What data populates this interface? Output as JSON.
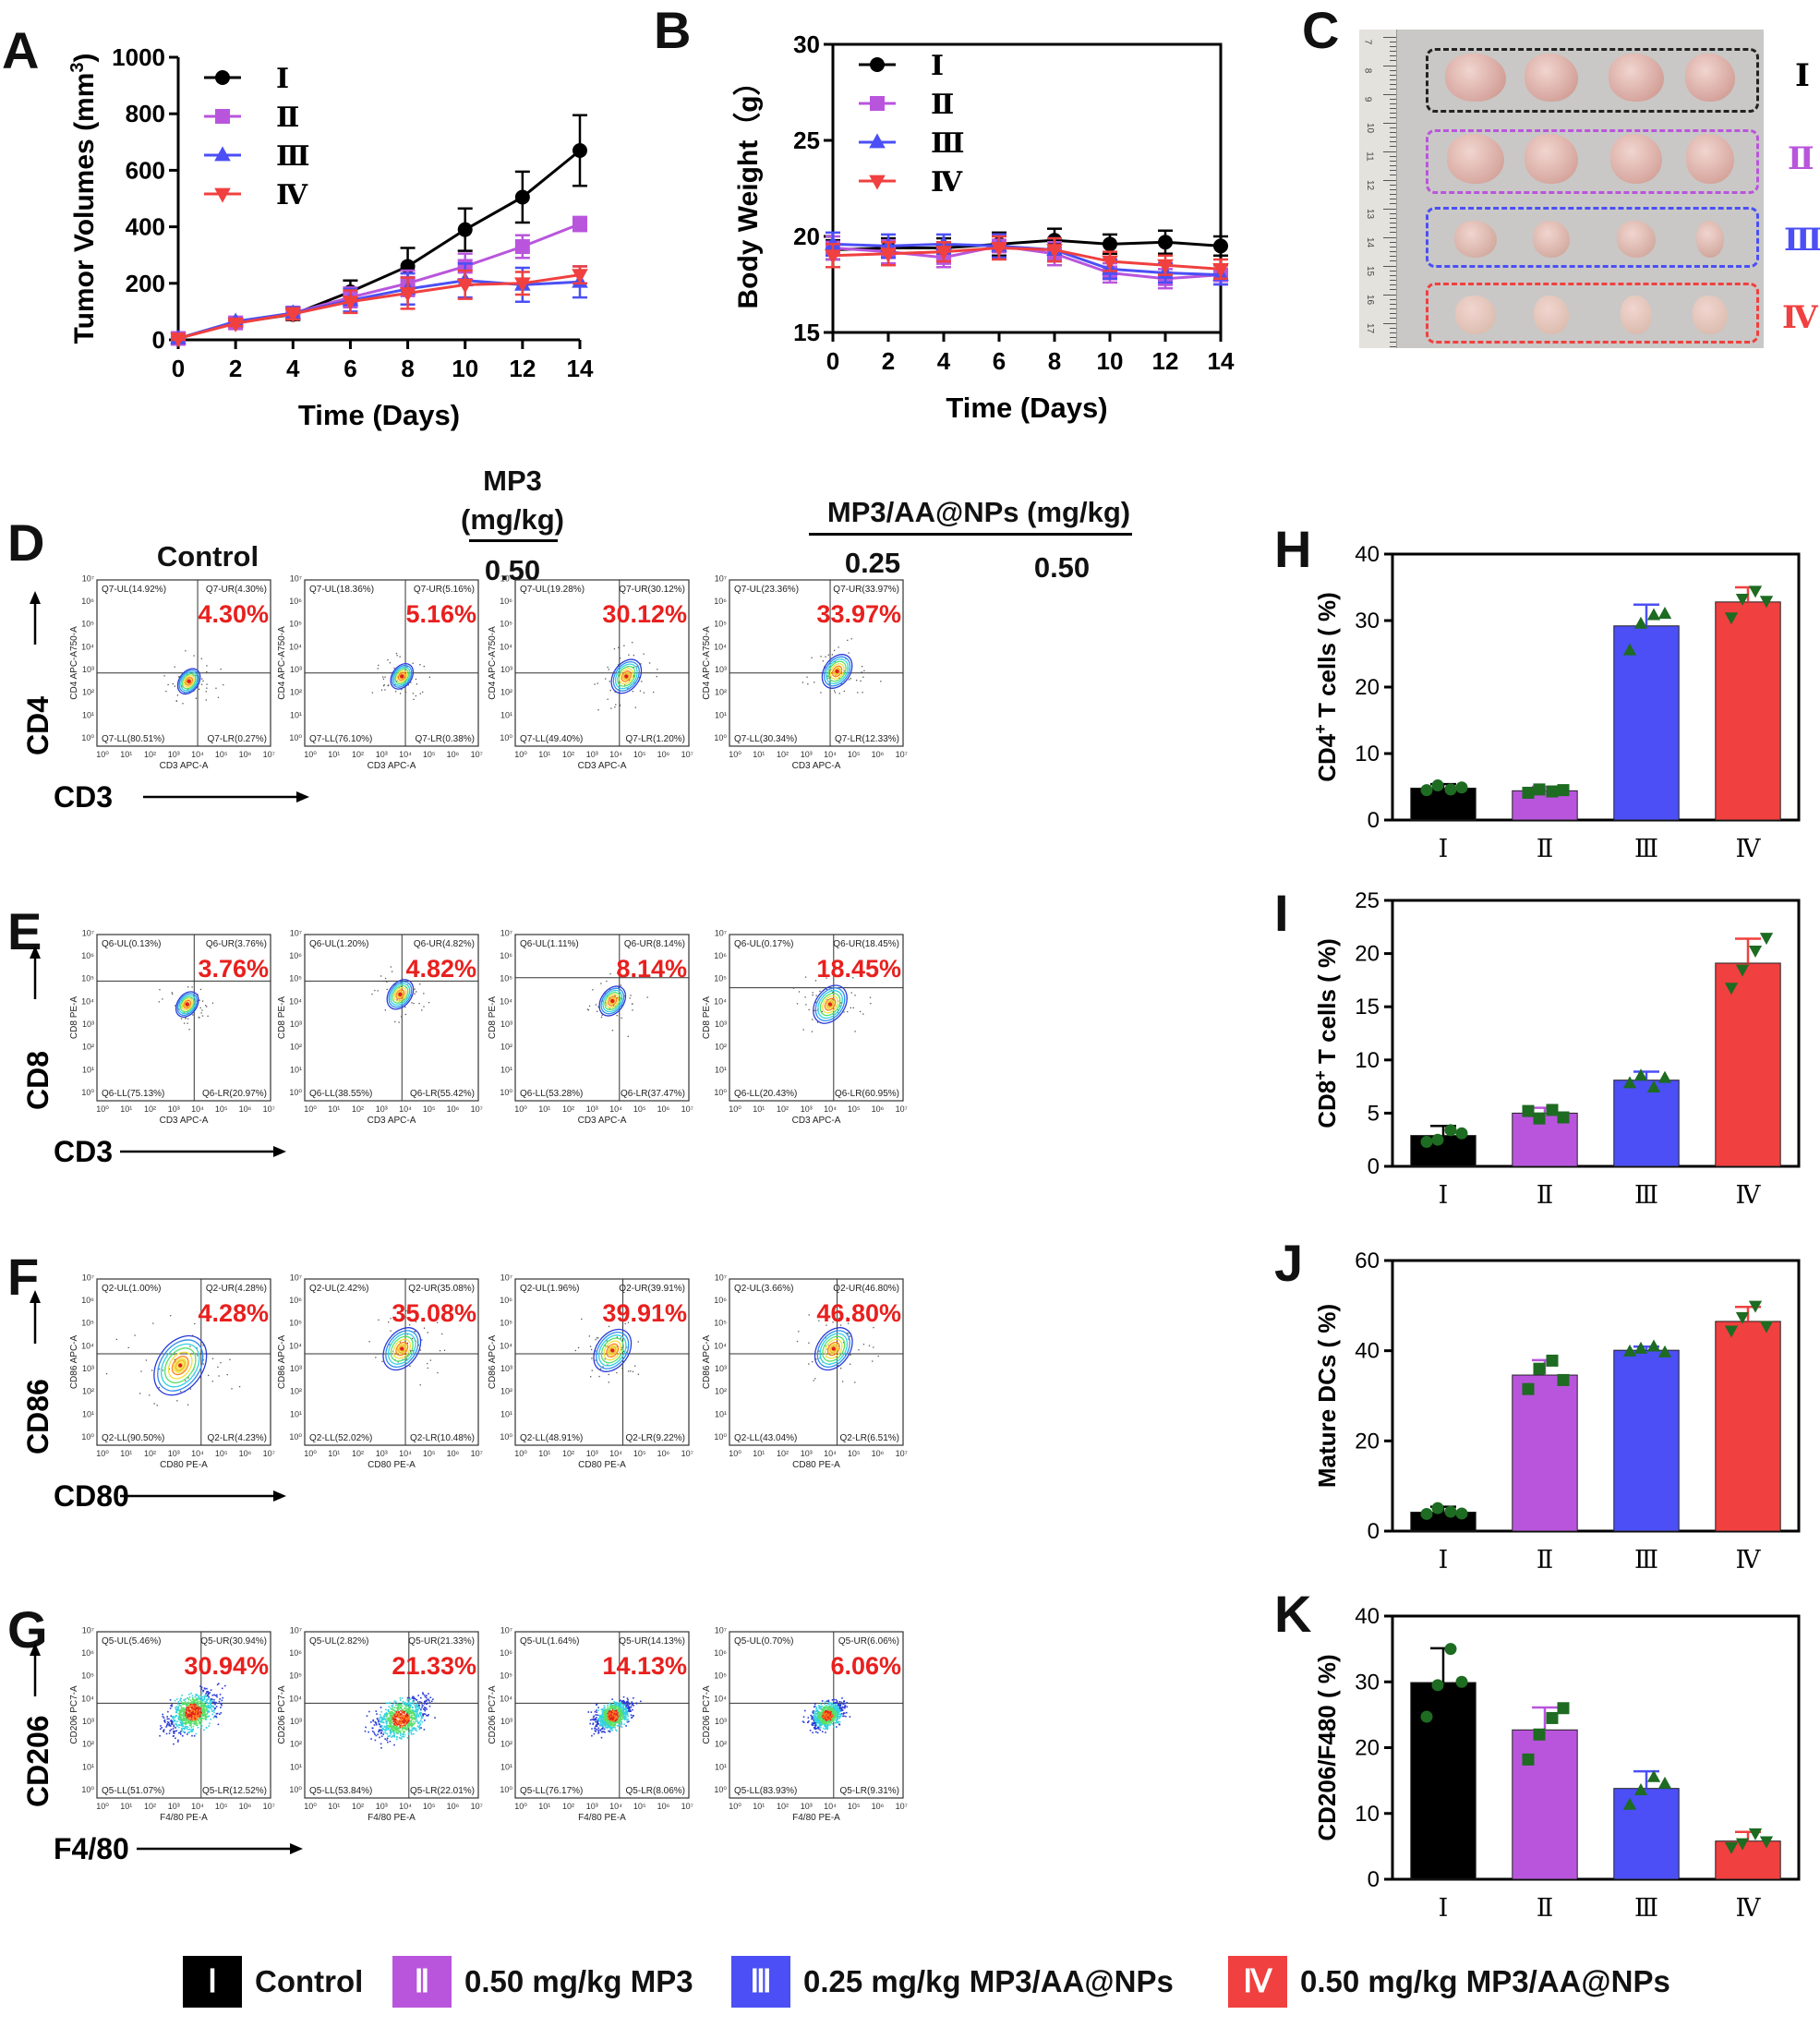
{
  "panel_labels": {
    "A": "A",
    "B": "B",
    "C": "C",
    "D": "D",
    "E": "E",
    "F": "F",
    "G": "G",
    "H": "H",
    "I": "I",
    "J": "J",
    "K": "K"
  },
  "group_names": [
    "Ⅰ",
    "Ⅱ",
    "Ⅲ",
    "Ⅳ"
  ],
  "group_colors": [
    "#000000",
    "#b955dc",
    "#4b4ff5",
    "#f0403f"
  ],
  "chart_data": [
    {
      "id": "A",
      "type": "line",
      "title": "",
      "xlabel": "Time (Days)",
      "ylabel": "Tumor Volumes (mm³)",
      "ylabel_main": "Tumor Volumes (mm",
      "ylabel_sup": "3",
      "ylabel_close": ")",
      "x": [
        0,
        2,
        4,
        6,
        8,
        10,
        12,
        14
      ],
      "xlim": [
        0,
        14
      ],
      "ylim": [
        0,
        1000
      ],
      "yticks": [
        0,
        200,
        400,
        600,
        800,
        1000
      ],
      "xticks": [
        0,
        2,
        4,
        6,
        8,
        10,
        12,
        14
      ],
      "series": [
        {
          "name": "Ⅰ",
          "color": "#000000",
          "marker": "circle",
          "values": [
            5,
            60,
            90,
            170,
            260,
            390,
            505,
            670
          ],
          "err": [
            5,
            10,
            20,
            40,
            65,
            75,
            90,
            125
          ]
        },
        {
          "name": "Ⅱ",
          "color": "#b955dc",
          "marker": "square",
          "values": [
            5,
            60,
            95,
            150,
            200,
            260,
            330,
            410
          ],
          "err": [
            5,
            10,
            20,
            35,
            45,
            45,
            40,
            25
          ]
        },
        {
          "name": "Ⅲ",
          "color": "#4b4ff5",
          "marker": "triangle",
          "values": [
            5,
            65,
            95,
            140,
            180,
            210,
            195,
            205
          ],
          "err": [
            5,
            10,
            20,
            40,
            55,
            60,
            60,
            55
          ]
        },
        {
          "name": "Ⅳ",
          "color": "#f0403f",
          "marker": "triangle-down",
          "values": [
            5,
            58,
            92,
            135,
            165,
            195,
            200,
            230
          ],
          "err": [
            5,
            10,
            20,
            40,
            55,
            50,
            40,
            30
          ]
        }
      ],
      "legend": "top-left"
    },
    {
      "id": "B",
      "type": "line",
      "title": "",
      "xlabel": "Time (Days)",
      "ylabel": "Body Weight（g）",
      "x": [
        0,
        2,
        4,
        6,
        8,
        10,
        12,
        14
      ],
      "xlim": [
        0,
        14
      ],
      "ylim": [
        15,
        30
      ],
      "yticks": [
        15,
        20,
        25,
        30
      ],
      "xticks": [
        0,
        2,
        4,
        6,
        8,
        10,
        12,
        14
      ],
      "series": [
        {
          "name": "Ⅰ",
          "color": "#000000",
          "marker": "circle",
          "values": [
            19.3,
            19.4,
            19.4,
            19.6,
            19.8,
            19.6,
            19.7,
            19.5
          ],
          "err": [
            0.5,
            0.5,
            0.5,
            0.6,
            0.6,
            0.5,
            0.6,
            0.5
          ]
        },
        {
          "name": "Ⅱ",
          "color": "#b955dc",
          "marker": "square",
          "values": [
            19.4,
            19.2,
            18.9,
            19.5,
            19.1,
            18.1,
            17.8,
            18.0
          ],
          "err": [
            0.6,
            0.6,
            0.5,
            0.6,
            0.6,
            0.5,
            0.5,
            0.5
          ]
        },
        {
          "name": "Ⅲ",
          "color": "#4b4ff5",
          "marker": "triangle",
          "values": [
            19.6,
            19.5,
            19.6,
            19.5,
            19.3,
            18.3,
            18.1,
            18.0
          ],
          "err": [
            0.6,
            0.6,
            0.5,
            0.6,
            0.6,
            0.5,
            0.5,
            0.5
          ]
        },
        {
          "name": "Ⅳ",
          "color": "#f0403f",
          "marker": "triangle-down",
          "values": [
            19.0,
            19.1,
            19.2,
            19.4,
            19.3,
            18.7,
            18.5,
            18.3
          ],
          "err": [
            0.6,
            0.6,
            0.5,
            0.6,
            0.6,
            0.5,
            0.5,
            0.5
          ]
        }
      ],
      "legend": "top-left"
    },
    {
      "id": "H",
      "type": "bar",
      "ylabel": "CD4⁺ T cells ( %)",
      "ylabel_pre": "CD4",
      "ylabel_sup": "+",
      "ylabel_post": " T cells ( %)",
      "categories": [
        "Ⅰ",
        "Ⅱ",
        "Ⅲ",
        "Ⅳ"
      ],
      "ylim": [
        0,
        40
      ],
      "yticks": [
        0,
        10,
        20,
        30,
        40
      ],
      "values": [
        4.8,
        4.4,
        29.2,
        32.8
      ],
      "err": [
        0.6,
        0.6,
        3.2,
        2.2
      ],
      "points": [
        [
          4.5,
          5.2,
          4.6,
          4.9
        ],
        [
          4.1,
          4.6,
          4.3,
          4.5
        ],
        [
          25.5,
          29.5,
          30.8,
          31.0
        ],
        [
          30.5,
          33.3,
          34.5,
          33.0
        ]
      ]
    },
    {
      "id": "I",
      "type": "bar",
      "ylabel": "CD8⁺ T cells ( %)",
      "ylabel_pre": "CD8",
      "ylabel_sup": "+",
      "ylabel_post": " T cells ( %)",
      "categories": [
        "Ⅰ",
        "Ⅱ",
        "Ⅲ",
        "Ⅳ"
      ],
      "ylim": [
        0,
        25
      ],
      "yticks": [
        0,
        5,
        10,
        15,
        20,
        25
      ],
      "values": [
        2.9,
        5.0,
        8.1,
        19.1
      ],
      "err": [
        0.9,
        0.5,
        0.8,
        2.3
      ],
      "points": [
        [
          2.3,
          2.5,
          3.4,
          3.1
        ],
        [
          5.2,
          4.5,
          5.3,
          4.6
        ],
        [
          7.8,
          8.5,
          7.4,
          8.3
        ],
        [
          16.8,
          18.5,
          20.3,
          21.5
        ]
      ]
    },
    {
      "id": "J",
      "type": "bar",
      "ylabel": "Mature DCs ( %)",
      "categories": [
        "Ⅰ",
        "Ⅱ",
        "Ⅲ",
        "Ⅳ"
      ],
      "ylim": [
        0,
        60
      ],
      "yticks": [
        0,
        20,
        40,
        60
      ],
      "values": [
        4.2,
        34.6,
        40.1,
        46.5
      ],
      "err": [
        1.2,
        3.3,
        0.8,
        3.2
      ],
      "points": [
        [
          3.8,
          5.1,
          4.3,
          3.9
        ],
        [
          31.5,
          36.0,
          37.8,
          33.5
        ],
        [
          39.8,
          40.4,
          40.9,
          39.6
        ],
        [
          44.5,
          47.5,
          50.0,
          45.5
        ]
      ]
    },
    {
      "id": "K",
      "type": "bar",
      "ylabel": "CD206/F480 ( %)",
      "categories": [
        "Ⅰ",
        "Ⅱ",
        "Ⅲ",
        "Ⅳ"
      ],
      "ylim": [
        0,
        40
      ],
      "yticks": [
        0,
        10,
        20,
        30,
        40
      ],
      "values": [
        29.9,
        22.7,
        13.8,
        5.8
      ],
      "err": [
        5.2,
        3.4,
        2.6,
        1.4
      ],
      "points": [
        [
          24.7,
          29.5,
          35.0,
          30.0
        ],
        [
          18.2,
          22.0,
          24.5,
          26.0
        ],
        [
          11.3,
          13.5,
          15.5,
          14.5
        ],
        [
          4.9,
          5.5,
          7.0,
          5.8
        ]
      ]
    }
  ],
  "panel_c": {
    "group_labels": [
      "Ⅰ",
      "Ⅱ",
      "Ⅲ",
      "Ⅳ"
    ],
    "ruler_numbers": [
      "7",
      "8",
      "9",
      "10",
      "11",
      "12",
      "13",
      "14",
      "15",
      "16",
      "17"
    ]
  },
  "flow": {
    "col_headers": {
      "control": "Control",
      "mp3": "MP3",
      "mp3_unit": "(mg/kg)",
      "mp3_dose": "0.50",
      "nps": "MP3/AA@NPs (mg/kg)",
      "nps_dose1": "0.25",
      "nps_dose2": "0.50"
    },
    "ticks": [
      "10⁰",
      "10¹",
      "10²",
      "10³",
      "10⁴",
      "10⁵",
      "10⁶",
      "10⁷"
    ],
    "rows": [
      {
        "id": "D",
        "y_marker": "CD4",
        "x_marker": "CD3",
        "q": "Q7",
        "ylab": "CD4 APC-A750-A",
        "xlab": "CD3 APC-A",
        "style": "contour",
        "cells": [
          {
            "UL": "Q7-UL(14.92%)",
            "UR": "Q7-UR(4.30%)",
            "LL": "Q7-LL(80.51%)",
            "LR": "Q7-LR(0.27%)",
            "big": "4.30%"
          },
          {
            "UL": "Q7-UL(18.36%)",
            "UR": "Q7-UR(5.16%)",
            "LL": "Q7-LL(76.10%)",
            "LR": "Q7-LR(0.38%)",
            "big": "5.16%"
          },
          {
            "UL": "Q7-UL(19.28%)",
            "UR": "Q7-UR(30.12%)",
            "LL": "Q7-LL(49.40%)",
            "LR": "Q7-LR(1.20%)",
            "big": "30.12%"
          },
          {
            "UL": "Q7-UL(23.36%)",
            "UR": "Q7-UR(33.97%)",
            "LL": "Q7-LL(30.34%)",
            "LR": "Q7-LR(12.33%)",
            "big": "33.97%"
          }
        ]
      },
      {
        "id": "E",
        "y_marker": "CD8",
        "x_marker": "CD3",
        "q": "Q6",
        "ylab": "CD8 PE-A",
        "xlab": "CD3 APC-A",
        "style": "contour",
        "cells": [
          {
            "UL": "Q6-UL(0.13%)",
            "UR": "Q6-UR(3.76%)",
            "LL": "Q6-LL(75.13%)",
            "LR": "Q6-LR(20.97%)",
            "big": "3.76%"
          },
          {
            "UL": "Q6-UL(1.20%)",
            "UR": "Q6-UR(4.82%)",
            "LL": "Q6-LL(38.55%)",
            "LR": "Q6-LR(55.42%)",
            "big": "4.82%"
          },
          {
            "UL": "Q6-UL(1.11%)",
            "UR": "Q6-UR(8.14%)",
            "LL": "Q6-LL(53.28%)",
            "LR": "Q6-LR(37.47%)",
            "big": "8.14%"
          },
          {
            "UL": "Q6-UL(0.17%)",
            "UR": "Q6-UR(18.45%)",
            "LL": "Q6-LL(20.43%)",
            "LR": "Q6-LR(60.95%)",
            "big": "18.45%"
          }
        ]
      },
      {
        "id": "F",
        "y_marker": "CD86",
        "x_marker": "CD80",
        "q": "Q2",
        "ylab": "CD86 APC-A",
        "xlab": "CD80 PE-A",
        "style": "contour",
        "cells": [
          {
            "UL": "Q2-UL(1.00%)",
            "UR": "Q2-UR(4.28%)",
            "LL": "Q2-LL(90.50%)",
            "LR": "Q2-LR(4.23%)",
            "big": "4.28%"
          },
          {
            "UL": "Q2-UL(2.42%)",
            "UR": "Q2-UR(35.08%)",
            "LL": "Q2-LL(52.02%)",
            "LR": "Q2-LR(10.48%)",
            "big": "35.08%"
          },
          {
            "UL": "Q2-UL(1.96%)",
            "UR": "Q2-UR(39.91%)",
            "LL": "Q2-LL(48.91%)",
            "LR": "Q2-LR(9.22%)",
            "big": "39.91%"
          },
          {
            "UL": "Q2-UL(3.66%)",
            "UR": "Q2-UR(46.80%)",
            "LL": "Q2-LL(43.04%)",
            "LR": "Q2-LR(6.51%)",
            "big": "46.80%"
          }
        ]
      },
      {
        "id": "G",
        "y_marker": "CD206",
        "x_marker": "F4/80",
        "q": "Q5",
        "ylab": "CD206 PC7-A",
        "xlab": "F4/80 PE-A",
        "style": "dense",
        "cells": [
          {
            "UL": "Q5-UL(5.46%)",
            "UR": "Q5-UR(30.94%)",
            "LL": "Q5-LL(51.07%)",
            "LR": "Q5-LR(12.52%)",
            "big": "30.94%"
          },
          {
            "UL": "Q5-UL(2.82%)",
            "UR": "Q5-UR(21.33%)",
            "LL": "Q5-LL(53.84%)",
            "LR": "Q5-LR(22.01%)",
            "big": "21.33%"
          },
          {
            "UL": "Q5-UL(1.64%)",
            "UR": "Q5-UR(14.13%)",
            "LL": "Q5-LL(76.17%)",
            "LR": "Q5-LR(8.06%)",
            "big": "14.13%"
          },
          {
            "UL": "Q5-UL(0.70%)",
            "UR": "Q5-UR(6.06%)",
            "LL": "Q5-LL(83.93%)",
            "LR": "Q5-LR(9.31%)",
            "big": "6.06%"
          }
        ]
      }
    ]
  },
  "legend": [
    {
      "numeral": "Ⅰ",
      "label": "Control",
      "color": "#000000"
    },
    {
      "numeral": "Ⅱ",
      "label": "0.50 mg/kg MP3",
      "color": "#b955dc"
    },
    {
      "numeral": "Ⅲ",
      "label": "0.25 mg/kg MP3/AA@NPs",
      "color": "#4b4ff5"
    },
    {
      "numeral": "Ⅳ",
      "label": "0.50 mg/kg MP3/AA@NPs",
      "color": "#f0403f"
    }
  ]
}
